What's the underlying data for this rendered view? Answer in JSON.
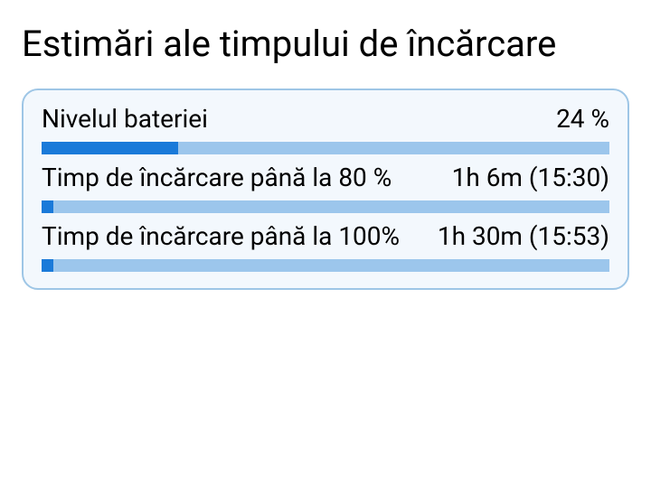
{
  "title": "Estimări ale timpului de încărcare",
  "card_bg": "#f3f8fd",
  "card_border": "#9ec6e6",
  "bar_track_color": "#9cc6ec",
  "bar_fill_color": "#1a7ad9",
  "rows": [
    {
      "label": "Nivelul bateriei",
      "value": "24 %",
      "progress_percent": 24
    },
    {
      "label": "Timp de încărcare până la 80 %",
      "value": "1h 6m (15:30)",
      "progress_percent": 2
    },
    {
      "label": "Timp de încărcare până la 100%",
      "value": "1h 30m (15:53)",
      "progress_percent": 2
    }
  ]
}
